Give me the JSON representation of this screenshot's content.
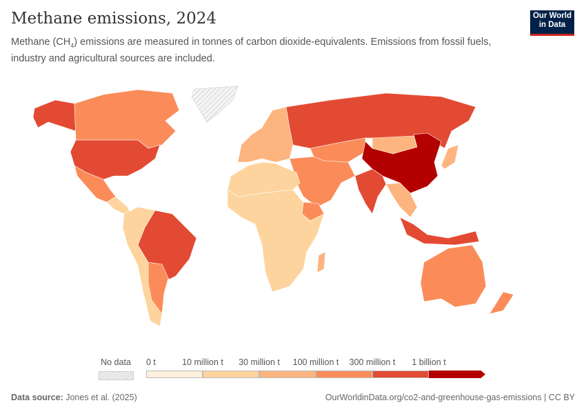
{
  "title": "Methane emissions, 2024",
  "subtitle_pre": "Methane (CH",
  "subtitle_sub": "4",
  "subtitle_post": ") emissions are measured in tonnes of carbon dioxide-equivalents. Emissions from fossil fuels, industry and agricultural sources are included.",
  "logo": {
    "line1": "Our World",
    "line2": "in Data",
    "bg": "#002147",
    "accent": "#ce261e"
  },
  "legend": {
    "no_data": "No data",
    "labels": [
      "0 t",
      "10 million t",
      "30 million t",
      "100 million t",
      "300 million t",
      "1 billion t"
    ],
    "colors": [
      "#fef0dc",
      "#fdd49e",
      "#fdb47f",
      "#fb8c59",
      "#e34a33",
      "#b30000"
    ]
  },
  "footer": {
    "source_label": "Data source:",
    "source": "Jones et al. (2025)",
    "url": "OurWorldinData.org/co2-and-greenhouse-gas-emissions | CC BY"
  }
}
